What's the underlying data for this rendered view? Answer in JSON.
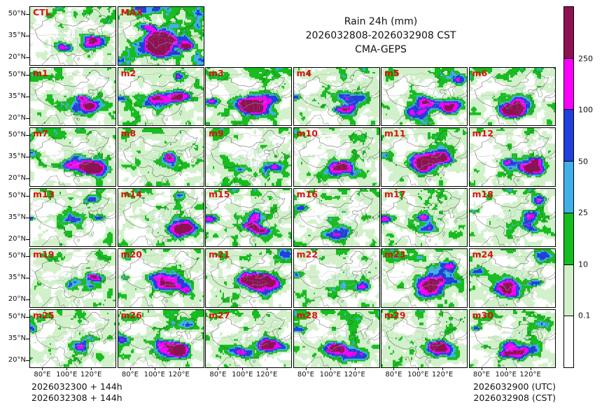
{
  "title": {
    "line1": "Rain 24h (mm)",
    "line2": "2026032808-2026032908 CST",
    "line3": "CMA-GEPS"
  },
  "panels": [
    {
      "label": "CTL",
      "seed": 12
    },
    {
      "label": "MAX",
      "seed": 94,
      "gain": 1.16,
      "lift": 0.15
    },
    {
      "label": "m1",
      "seed": 201
    },
    {
      "label": "m2",
      "seed": 202
    },
    {
      "label": "m3",
      "seed": 203
    },
    {
      "label": "m4",
      "seed": 204
    },
    {
      "label": "m5",
      "seed": 205
    },
    {
      "label": "m6",
      "seed": 206
    },
    {
      "label": "m7",
      "seed": 207
    },
    {
      "label": "m8",
      "seed": 208
    },
    {
      "label": "m9",
      "seed": 209
    },
    {
      "label": "m10",
      "seed": 210
    },
    {
      "label": "m11",
      "seed": 211
    },
    {
      "label": "m12",
      "seed": 212
    },
    {
      "label": "m13",
      "seed": 213
    },
    {
      "label": "m14",
      "seed": 214
    },
    {
      "label": "m15",
      "seed": 215
    },
    {
      "label": "m16",
      "seed": 216
    },
    {
      "label": "m17",
      "seed": 217
    },
    {
      "label": "m18",
      "seed": 218
    },
    {
      "label": "m19",
      "seed": 219
    },
    {
      "label": "m20",
      "seed": 220
    },
    {
      "label": "m21",
      "seed": 221
    },
    {
      "label": "m22",
      "seed": 222
    },
    {
      "label": "m23",
      "seed": 223
    },
    {
      "label": "m24",
      "seed": 224
    },
    {
      "label": "m25",
      "seed": 225
    },
    {
      "label": "m26",
      "seed": 226
    },
    {
      "label": "m27",
      "seed": 227
    },
    {
      "label": "m28",
      "seed": 228
    },
    {
      "label": "m29",
      "seed": 229
    },
    {
      "label": "m30",
      "seed": 230
    }
  ],
  "axes": {
    "lat_ticks": [
      "50°N",
      "35°N",
      "20°N"
    ],
    "lon_ticks": [
      "80°E",
      "100°E",
      "120°E"
    ]
  },
  "colorbar": {
    "labels_top_to_bottom": [
      "250",
      "100",
      "50",
      "25",
      "10",
      "0.1"
    ],
    "colors_top_to_bottom": [
      "#8e1252",
      "#fa00fa",
      "#2140dc",
      "#41b0e8",
      "#16bd1e",
      "#d2f1cb",
      "#ffffff"
    ]
  },
  "footer": {
    "left_line1": "2026032300 + 144h",
    "left_line2": "2026032308 + 144h",
    "right_line1": "2026032900 (UTC)",
    "right_line2": "2026032908 (CST)"
  },
  "style": {
    "panel_label_color": "#dd1111",
    "coast_color": "#3a3a3a",
    "province_color": "#8a8a8a",
    "river_color": "#93d8ef"
  }
}
